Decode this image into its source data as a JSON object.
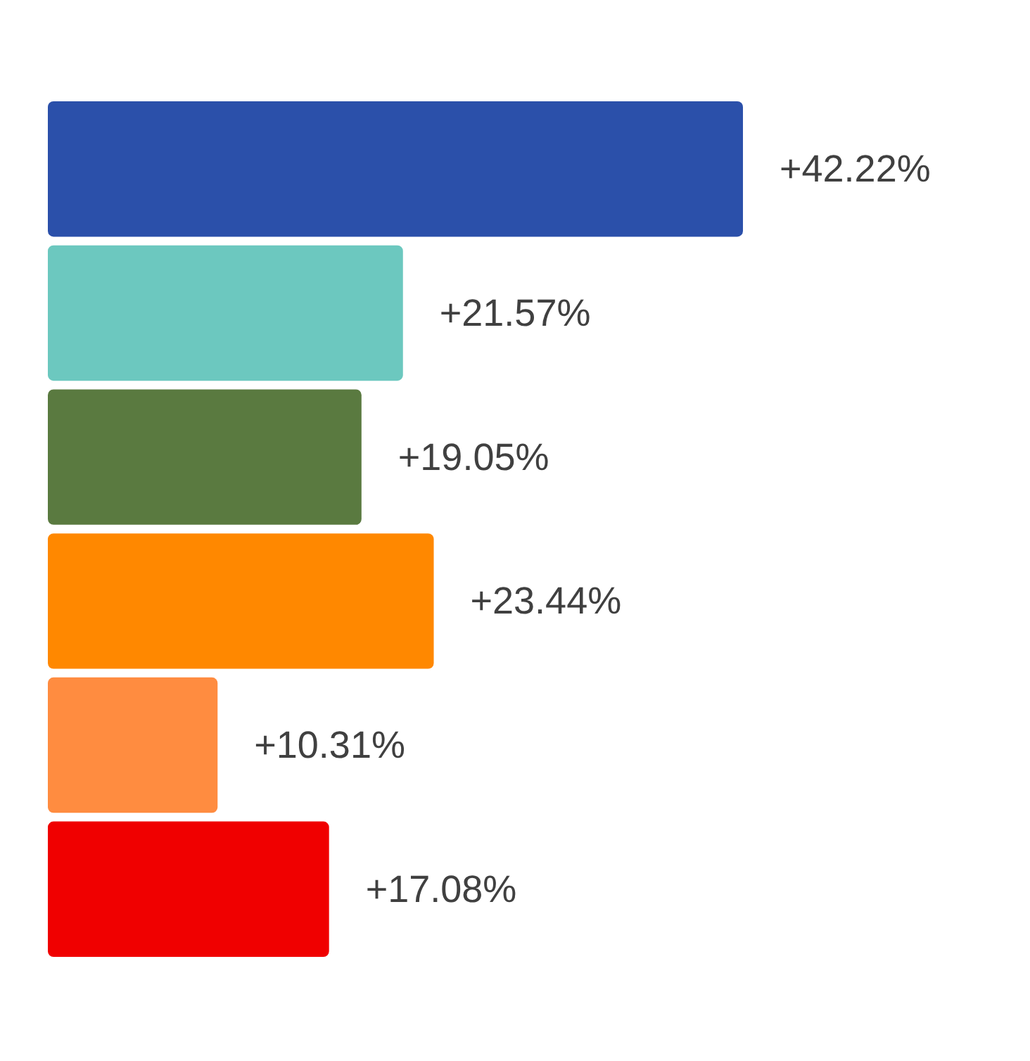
{
  "chart_data": {
    "type": "bar",
    "orientation": "horizontal",
    "categories": [
      null,
      null,
      null,
      null,
      null,
      null
    ],
    "values": [
      42.22,
      21.57,
      19.05,
      23.44,
      10.31,
      17.08
    ],
    "colors": [
      "#2b50aa",
      "#6cc8bf",
      "#5a7a40",
      "#ff8800",
      "#ff8c40",
      "#f00000"
    ],
    "value_labels": [
      "+42.22%",
      "+21.57%",
      "+19.05%",
      "+23.44%",
      "+10.31%",
      "+17.08%"
    ]
  }
}
